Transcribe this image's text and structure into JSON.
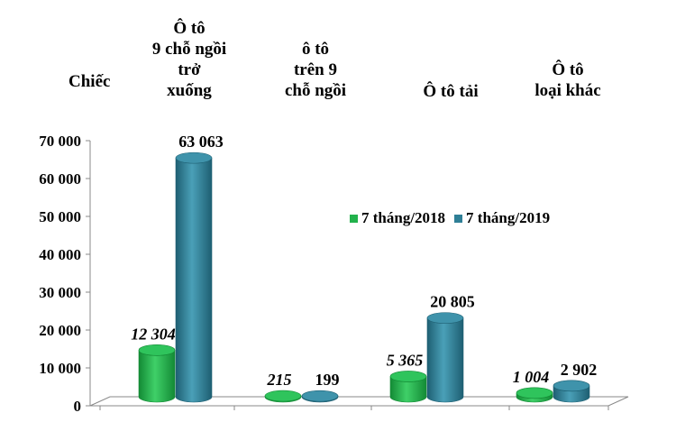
{
  "chart_data": {
    "type": "bar",
    "unit_label": "Chiếc",
    "categories": [
      "Ô tô\n9 chỗ ngồi\ntrở\nxuống",
      "ô tô\ntrên 9\nchỗ ngồi",
      "Ô tô tải",
      "Ô tô\nloại khác"
    ],
    "series": [
      {
        "name": "7 tháng/2018",
        "color": "#22b24c",
        "values": [
          12304,
          215,
          5365,
          1004
        ],
        "labels": [
          "12 304",
          "215",
          "5 365",
          "1 004"
        ]
      },
      {
        "name": "7 tháng/2019",
        "color": "#2f7f96",
        "values": [
          63063,
          199,
          20805,
          2902
        ],
        "labels": [
          "63 063",
          "199",
          "20 805",
          "2 902"
        ]
      }
    ],
    "y_ticks": [
      "0",
      "10 000",
      "20 000",
      "30 000",
      "40 000",
      "50 000",
      "60 000",
      "70 000"
    ],
    "ylim": [
      0,
      70000
    ],
    "legend_position": "right"
  }
}
